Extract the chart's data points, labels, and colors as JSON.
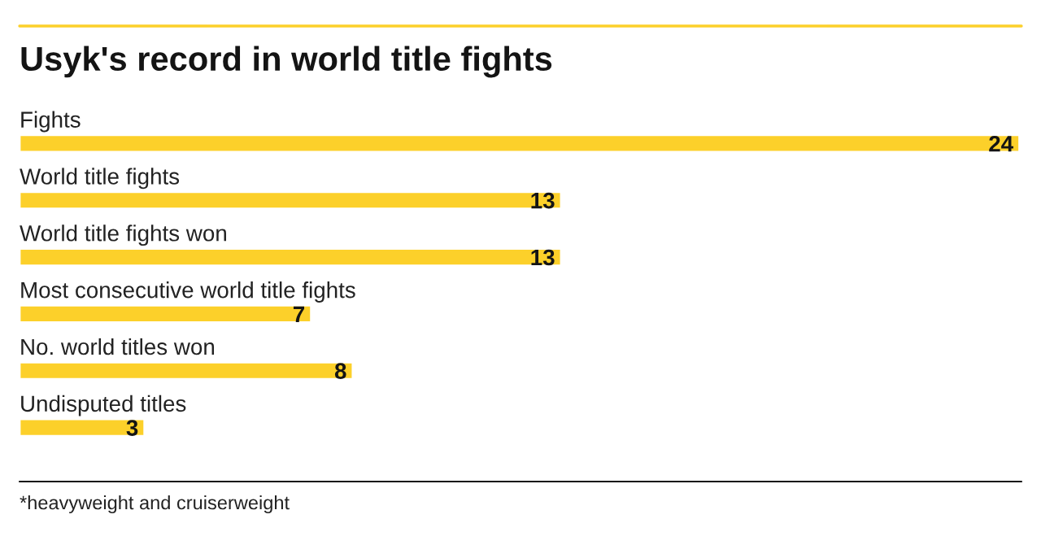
{
  "chart_data": {
    "type": "bar",
    "orientation": "horizontal",
    "title": "Usyk's record in world title fights",
    "categories": [
      "Fights",
      "World title fights",
      "World title fights won",
      "Most consecutive world title fights",
      "No. world titles won",
      "Undisputed titles"
    ],
    "values": [
      24,
      13,
      13,
      7,
      8,
      3
    ],
    "color": "#fcd02a",
    "data_labels": true,
    "annotations": [
      "*heavyweight and cruiserweight"
    ]
  }
}
